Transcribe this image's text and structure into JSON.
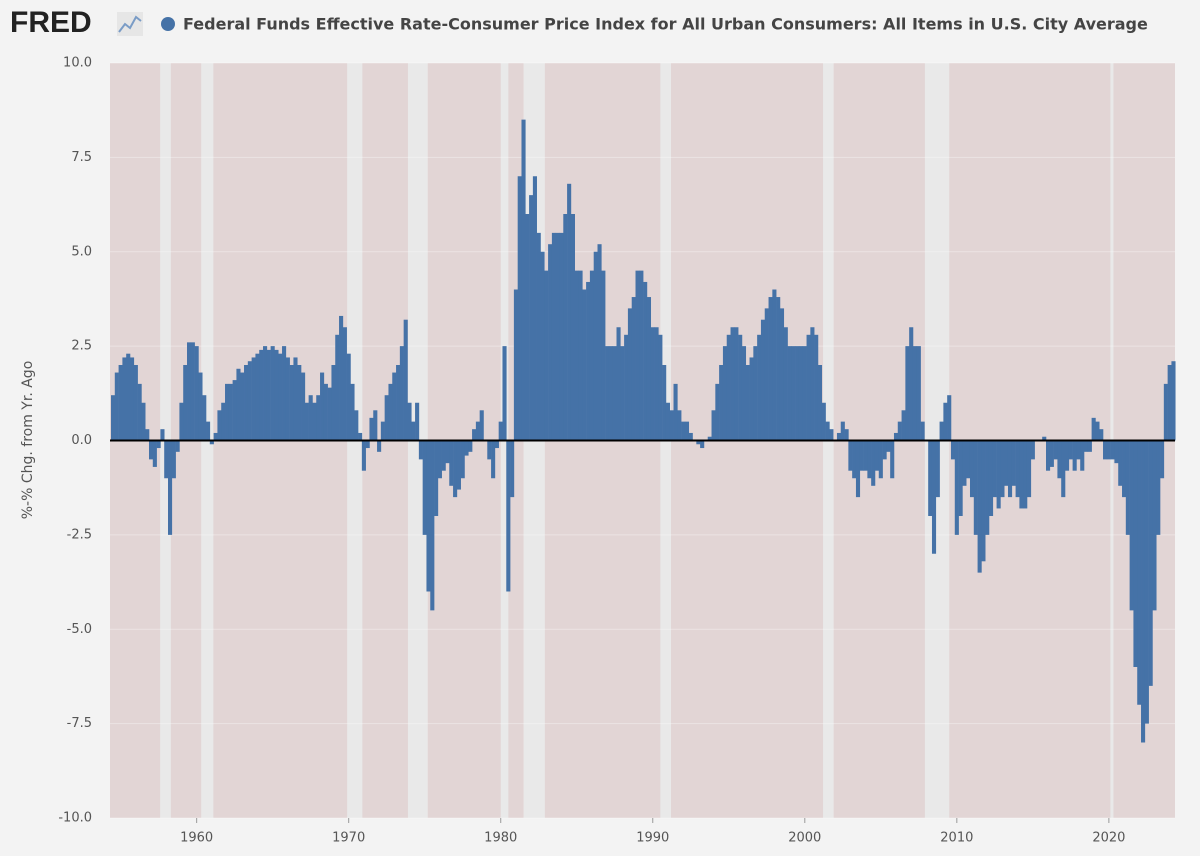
{
  "chart_data": {
    "type": "bar",
    "logo": "FRED",
    "title": "Federal Funds Effective Rate-Consumer Price Index for All Urban Consumers: All Items in U.S. City Average",
    "y_label": "%-% Chg. from Yr. Ago",
    "xlim": [
      1954.3,
      2024.35
    ],
    "ylim": [
      -10,
      10
    ],
    "xticks": [
      1960,
      1970,
      1980,
      1990,
      2000,
      2010,
      2020
    ],
    "yticks": [
      {
        "value": 10,
        "label": "10.0"
      },
      7.5,
      {
        "value": 5,
        "label": "5.0"
      },
      2.5,
      {
        "value": 0,
        "label": "0.0"
      },
      -2.5,
      {
        "value": -5,
        "label": "-5.0"
      },
      -7.5,
      {
        "value": -10,
        "label": "-10.0"
      }
    ],
    "grid": true,
    "recessions": [
      [
        1957.6,
        1958.3
      ],
      [
        1960.3,
        1961.1
      ],
      [
        1969.9,
        1970.9
      ],
      [
        1973.9,
        1975.2
      ],
      [
        1980.0,
        1980.5
      ],
      [
        1981.5,
        1982.9
      ],
      [
        1990.5,
        1991.2
      ],
      [
        2001.2,
        2001.9
      ],
      [
        2007.9,
        2009.5
      ],
      [
        2020.1,
        2020.3
      ]
    ],
    "series": [
      {
        "name": "Federal Funds Effective Rate-Consumer Price Index for All Urban Consumers: All Items in U.S. City Average",
        "color": "#4572a7",
        "x": [
          1954.5,
          1954.75,
          1955,
          1955.25,
          1955.5,
          1955.75,
          1956,
          1956.25,
          1956.5,
          1956.75,
          1957,
          1957.25,
          1957.5,
          1957.75,
          1958,
          1958.25,
          1958.5,
          1958.75,
          1959,
          1959.25,
          1959.5,
          1959.75,
          1960,
          1960.25,
          1960.5,
          1960.75,
          1961,
          1961.25,
          1961.5,
          1961.75,
          1962,
          1962.25,
          1962.5,
          1962.75,
          1963,
          1963.25,
          1963.5,
          1963.75,
          1964,
          1964.25,
          1964.5,
          1964.75,
          1965,
          1965.25,
          1965.5,
          1965.75,
          1966,
          1966.25,
          1966.5,
          1966.75,
          1967,
          1967.25,
          1967.5,
          1967.75,
          1968,
          1968.25,
          1968.5,
          1968.75,
          1969,
          1969.25,
          1969.5,
          1969.75,
          1970,
          1970.25,
          1970.5,
          1970.75,
          1971,
          1971.25,
          1971.5,
          1971.75,
          1972,
          1972.25,
          1972.5,
          1972.75,
          1973,
          1973.25,
          1973.5,
          1973.75,
          1974,
          1974.25,
          1974.5,
          1974.75,
          1975,
          1975.25,
          1975.5,
          1975.75,
          1976,
          1976.25,
          1976.5,
          1976.75,
          1977,
          1977.25,
          1977.5,
          1977.75,
          1978,
          1978.25,
          1978.5,
          1978.75,
          1979,
          1979.25,
          1979.5,
          1979.75,
          1980,
          1980.25,
          1980.5,
          1980.75,
          1981,
          1981.25,
          1981.5,
          1981.75,
          1982,
          1982.25,
          1982.5,
          1982.75,
          1983,
          1983.25,
          1983.5,
          1983.75,
          1984,
          1984.25,
          1984.5,
          1984.75,
          1985,
          1985.25,
          1985.5,
          1985.75,
          1986,
          1986.25,
          1986.5,
          1986.75,
          1987,
          1987.25,
          1987.5,
          1987.75,
          1988,
          1988.25,
          1988.5,
          1988.75,
          1989,
          1989.25,
          1989.5,
          1989.75,
          1990,
          1990.25,
          1990.5,
          1990.75,
          1991,
          1991.25,
          1991.5,
          1991.75,
          1992,
          1992.25,
          1992.5,
          1992.75,
          1993,
          1993.25,
          1993.5,
          1993.75,
          1994,
          1994.25,
          1994.5,
          1994.75,
          1995,
          1995.25,
          1995.5,
          1995.75,
          1996,
          1996.25,
          1996.5,
          1996.75,
          1997,
          1997.25,
          1997.5,
          1997.75,
          1998,
          1998.25,
          1998.5,
          1998.75,
          1999,
          1999.25,
          1999.5,
          1999.75,
          2000,
          2000.25,
          2000.5,
          2000.75,
          2001,
          2001.25,
          2001.5,
          2001.75,
          2002,
          2002.25,
          2002.5,
          2002.75,
          2003,
          2003.25,
          2003.5,
          2003.75,
          2004,
          2004.25,
          2004.5,
          2004.75,
          2005,
          2005.25,
          2005.5,
          2005.75,
          2006,
          2006.25,
          2006.5,
          2006.75,
          2007,
          2007.25,
          2007.5,
          2007.75,
          2008,
          2008.25,
          2008.5,
          2008.75,
          2009,
          2009.25,
          2009.5,
          2009.75,
          2010,
          2010.25,
          2010.5,
          2010.75,
          2011,
          2011.25,
          2011.5,
          2011.75,
          2012,
          2012.25,
          2012.5,
          2012.75,
          2013,
          2013.25,
          2013.5,
          2013.75,
          2014,
          2014.25,
          2014.5,
          2014.75,
          2015,
          2015.25,
          2015.5,
          2015.75,
          2016,
          2016.25,
          2016.5,
          2016.75,
          2017,
          2017.25,
          2017.5,
          2017.75,
          2018,
          2018.25,
          2018.5,
          2018.75,
          2019,
          2019.25,
          2019.5,
          2019.75,
          2020,
          2020.25,
          2020.5,
          2020.75,
          2021,
          2021.25,
          2021.5,
          2021.75,
          2022,
          2022.25,
          2022.5,
          2022.75,
          2023,
          2023.25,
          2023.5,
          2023.75,
          2024,
          2024.25
        ],
        "values": [
          1.2,
          1.8,
          2.0,
          2.2,
          2.3,
          2.2,
          2.0,
          1.5,
          1.0,
          0.3,
          -0.5,
          -0.7,
          -0.2,
          0.3,
          -1.0,
          -2.5,
          -1.0,
          -0.3,
          1.0,
          2.0,
          2.6,
          2.6,
          2.5,
          1.8,
          1.2,
          0.5,
          -0.1,
          0.2,
          0.8,
          1.0,
          1.5,
          1.5,
          1.6,
          1.9,
          1.8,
          2.0,
          2.1,
          2.2,
          2.3,
          2.4,
          2.5,
          2.4,
          2.5,
          2.4,
          2.3,
          2.5,
          2.2,
          2.0,
          2.2,
          2.0,
          1.8,
          1.0,
          1.2,
          1.0,
          1.2,
          1.8,
          1.5,
          1.4,
          2.0,
          2.8,
          3.3,
          3.0,
          2.3,
          1.5,
          0.8,
          0.2,
          -0.8,
          -0.2,
          0.6,
          0.8,
          -0.3,
          0.5,
          1.2,
          1.5,
          1.8,
          2.0,
          2.5,
          3.2,
          1.0,
          0.5,
          1.0,
          -0.5,
          -2.5,
          -4.0,
          -4.5,
          -2.0,
          -1.0,
          -0.8,
          -0.6,
          -1.2,
          -1.5,
          -1.3,
          -1.0,
          -0.4,
          -0.3,
          0.3,
          0.5,
          0.8,
          0.0,
          -0.5,
          -1.0,
          -0.2,
          0.5,
          2.5,
          -4.0,
          -1.5,
          4.0,
          7.0,
          8.5,
          6.0,
          6.5,
          7.0,
          5.5,
          5.0,
          4.5,
          5.2,
          5.5,
          5.5,
          5.5,
          6.0,
          6.8,
          6.0,
          4.5,
          4.5,
          4.0,
          4.2,
          4.5,
          5.0,
          5.2,
          4.5,
          2.5,
          2.5,
          2.5,
          3.0,
          2.5,
          2.8,
          3.5,
          3.8,
          4.5,
          4.5,
          4.2,
          3.8,
          3.0,
          3.0,
          2.8,
          2.0,
          1.0,
          0.8,
          1.5,
          0.8,
          0.5,
          0.5,
          0.2,
          0.0,
          -0.1,
          -0.2,
          0.0,
          0.1,
          0.8,
          1.5,
          2.0,
          2.5,
          2.8,
          3.0,
          3.0,
          2.8,
          2.5,
          2.0,
          2.2,
          2.5,
          2.8,
          3.2,
          3.5,
          3.8,
          4.0,
          3.8,
          3.5,
          3.0,
          2.5,
          2.5,
          2.5,
          2.5,
          2.5,
          2.8,
          3.0,
          2.8,
          2.0,
          1.0,
          0.5,
          0.3,
          0.0,
          0.2,
          0.5,
          0.3,
          -0.8,
          -1.0,
          -1.5,
          -0.8,
          -0.8,
          -1.0,
          -1.2,
          -0.8,
          -1.0,
          -0.5,
          -0.3,
          -1.0,
          0.2,
          0.5,
          0.8,
          2.5,
          3.0,
          2.5,
          2.5,
          0.5,
          0.0,
          -2.0,
          -3.0,
          -1.5,
          0.5,
          1.0,
          1.2,
          -0.5,
          -2.5,
          -2.0,
          -1.2,
          -1.0,
          -1.5,
          -2.5,
          -3.5,
          -3.2,
          -2.5,
          -2.0,
          -1.5,
          -1.8,
          -1.5,
          -1.2,
          -1.5,
          -1.2,
          -1.5,
          -1.8,
          -1.8,
          -1.5,
          -0.5,
          0.0,
          0.0,
          0.1,
          -0.8,
          -0.7,
          -0.5,
          -1.0,
          -1.5,
          -0.8,
          -0.5,
          -0.8,
          -0.5,
          -0.8,
          -0.3,
          -0.3,
          0.6,
          0.5,
          0.3,
          -0.5,
          -0.5,
          -0.5,
          -0.6,
          -1.2,
          -1.5,
          -2.5,
          -4.5,
          -6.0,
          -7.0,
          -8.0,
          -7.5,
          -6.5,
          -4.5,
          -2.5,
          -1.0,
          1.5,
          2.0,
          2.1
        ]
      }
    ]
  }
}
